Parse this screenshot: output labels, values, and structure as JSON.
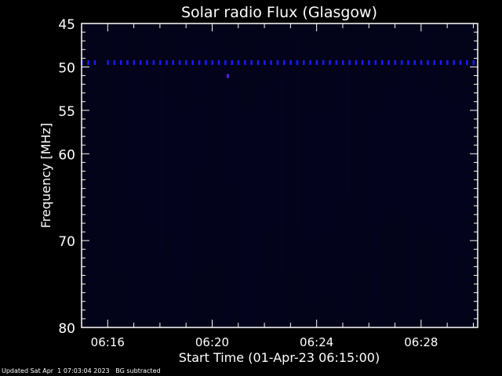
{
  "chart_data": {
    "type": "heatmap",
    "title": "Solar radio Flux (Glasgow)",
    "xlabel": "Start Time (01-Apr-23 06:15:00)",
    "ylabel": "Frequency [MHz]",
    "x_tick_labels": [
      "06:16",
      "06:20",
      "06:24",
      "06:28"
    ],
    "x_ticks_minutes": [
      16,
      20,
      24,
      28
    ],
    "xlim": [
      "06:15:00",
      "06:30:10"
    ],
    "y_tick_labels": [
      "45",
      "50",
      "55",
      "60",
      "70",
      "80"
    ],
    "y_ticks": [
      45,
      50,
      55,
      60,
      70,
      80
    ],
    "ylim": [
      45,
      80
    ],
    "y_reversed": true,
    "colormap": "black-to-blue",
    "background_color": "#03031a",
    "features": [
      {
        "kind": "periodic-band",
        "frequency_mhz": 49.5,
        "interval_s": 15,
        "color": "#1a1aff"
      },
      {
        "kind": "spot",
        "frequency_mhz": 51.1,
        "time": "06:20:36",
        "color": "#5a1aff"
      }
    ]
  },
  "footer": {
    "updated": "Updated Sat Apr  1 07:03:04 2023",
    "note": "BG subtracted"
  }
}
